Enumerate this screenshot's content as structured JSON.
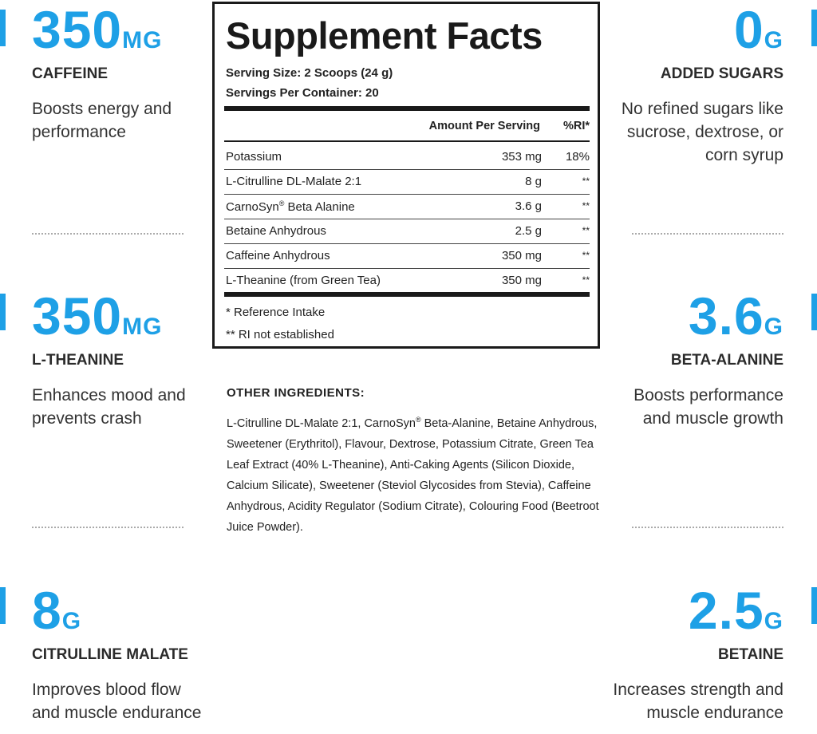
{
  "accent_color": "#1ea0e6",
  "left_stats": [
    {
      "value": "350",
      "unit": "MG",
      "name": "CAFFEINE",
      "desc": "Boosts energy and performance"
    },
    {
      "value": "350",
      "unit": "MG",
      "name": "L-THEANINE",
      "desc": "Enhances mood and prevents crash"
    },
    {
      "value": "8",
      "unit": "G",
      "name": "CITRULLINE MALATE",
      "desc": "Improves blood flow and muscle endurance"
    }
  ],
  "right_stats": [
    {
      "value": "0",
      "unit": "G",
      "name": "ADDED SUGARS",
      "desc": "No refined sugars like sucrose, dextrose, or corn syrup"
    },
    {
      "value": "3.6",
      "unit": "G",
      "name": "BETA-ALANINE",
      "desc": "Boosts performance and muscle growth"
    },
    {
      "value": "2.5",
      "unit": "G",
      "name": "BETAINE",
      "desc": "Increases strength and muscle endurance"
    }
  ],
  "facts": {
    "title": "Supplement Facts",
    "serving_size": "Serving Size: 2 Scoops (24 g)",
    "servings_per_container": "Servings Per Container: 20",
    "col_amount": "Amount Per Serving",
    "col_ri": "%RI*",
    "rows": [
      {
        "name": "Potassium",
        "amount": "353 mg",
        "ri": "18%"
      },
      {
        "name": "L-Citrulline DL-Malate 2:1",
        "amount": "8 g",
        "ri": "**"
      },
      {
        "name": "CarnoSyn",
        "name_sup": "®",
        "name_rest": " Beta Alanine",
        "amount": "3.6 g",
        "ri": "**"
      },
      {
        "name": "Betaine Anhydrous",
        "amount": "2.5 g",
        "ri": "**"
      },
      {
        "name": "Caffeine Anhydrous",
        "amount": "350 mg",
        "ri": "**"
      },
      {
        "name": "L-Theanine (from Green Tea)",
        "amount": "350 mg",
        "ri": "**"
      }
    ],
    "note1": "* Reference Intake",
    "note2": "** RI not established"
  },
  "other_ingredients": {
    "heading": "OTHER INGREDIENTS:",
    "text_before_sup": "L-Citrulline DL-Malate 2:1, CarnoSyn",
    "sup": "®",
    "text_after_sup": " Beta-Alanine, Betaine Anhydrous, Sweetener (Erythritol), Flavour, Dextrose, Potassium Citrate, Green Tea Leaf Extract (40% L-Theanine), Anti-Caking Agents (Silicon Dioxide, Calcium Silicate), Sweetener (Steviol Glycosides from Stevia), Caffeine Anhydrous, Acidity Regulator (Sodium Citrate), Colouring Food (Beetroot Juice Powder)."
  }
}
